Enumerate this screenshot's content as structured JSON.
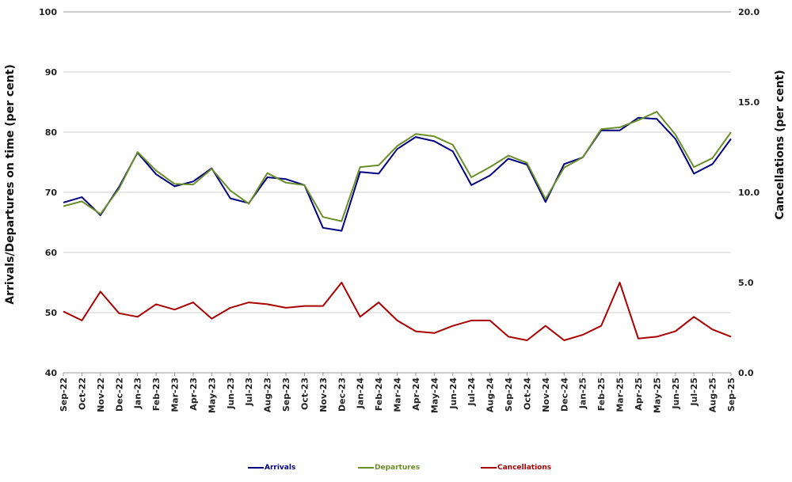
{
  "chart_data": {
    "type": "line",
    "title": "",
    "xlabel": "",
    "ylabel": "Arrivals/Departures on time (per cent)",
    "y2label": "Cancellations (per cent)",
    "ylim": [
      40,
      100
    ],
    "y2lim": [
      0,
      20
    ],
    "yticks": [
      "40",
      "50",
      "60",
      "70",
      "80",
      "90",
      "100"
    ],
    "y2ticks": [
      "0.0",
      "5.0",
      "10.0",
      "15.0",
      "20.0"
    ],
    "grid": true,
    "legend_position": "bottom",
    "categories": [
      "Sep-22",
      "Oct-22",
      "Nov-22",
      "Dec-22",
      "Jan-23",
      "Feb-23",
      "Mar-23",
      "Apr-23",
      "May-23",
      "Jun-23",
      "Jul-23",
      "Aug-23",
      "Sep-23",
      "Oct-23",
      "Nov-23",
      "Dec-23",
      "Jan-24",
      "Feb-24",
      "Mar-24",
      "Apr-24",
      "May-24",
      "Jun-24",
      "Jul-24",
      "Aug-24",
      "Sep-24",
      "Oct-24",
      "Nov-24",
      "Dec-24",
      "Jan-25",
      "Feb-25",
      "Mar-25",
      "Apr-25",
      "May-25",
      "Jun-25",
      "Jul-25",
      "Aug-25",
      "Sep-25"
    ],
    "series": [
      {
        "name": "Arrivals",
        "axis": "left",
        "color": "#000080",
        "values": [
          68.3,
          69.2,
          66.2,
          70.9,
          76.6,
          73.0,
          71.0,
          71.8,
          74.0,
          69.0,
          68.2,
          72.5,
          72.2,
          71.2,
          64.1,
          63.6,
          73.4,
          73.1,
          77.2,
          79.2,
          78.5,
          76.8,
          71.2,
          72.8,
          75.6,
          74.6,
          68.4,
          74.7,
          75.8,
          80.3,
          80.3,
          82.4,
          82.2,
          78.9,
          73.1,
          74.7,
          78.9
        ]
      },
      {
        "name": "Departures",
        "axis": "left",
        "color": "#6a8f2a",
        "values": [
          67.7,
          68.5,
          66.4,
          70.6,
          76.7,
          73.6,
          71.4,
          71.3,
          73.9,
          70.3,
          68.1,
          73.2,
          71.6,
          71.2,
          65.9,
          65.2,
          74.2,
          74.5,
          77.7,
          79.7,
          79.3,
          77.9,
          72.5,
          74.2,
          76.1,
          74.9,
          68.9,
          74.1,
          75.8,
          80.5,
          80.8,
          82.0,
          83.4,
          79.6,
          74.2,
          75.7,
          80.0
        ]
      },
      {
        "name": "Cancellations",
        "axis": "right",
        "color": "#aa0000",
        "values": [
          3.4,
          2.9,
          4.5,
          3.3,
          3.1,
          3.8,
          3.5,
          3.9,
          3.0,
          3.6,
          3.9,
          3.8,
          3.6,
          3.7,
          3.7,
          5.0,
          3.1,
          3.9,
          2.9,
          2.3,
          2.2,
          2.6,
          2.9,
          2.9,
          2.0,
          1.8,
          2.6,
          1.8,
          2.1,
          2.6,
          5.0,
          1.9,
          2.0,
          2.3,
          3.1,
          2.4,
          2.0
        ]
      }
    ]
  },
  "legend": {
    "items": [
      {
        "label": "Arrivals",
        "color": "#000080"
      },
      {
        "label": "Departures",
        "color": "#6a8f2a"
      },
      {
        "label": "Cancellations",
        "color": "#aa0000"
      }
    ]
  }
}
